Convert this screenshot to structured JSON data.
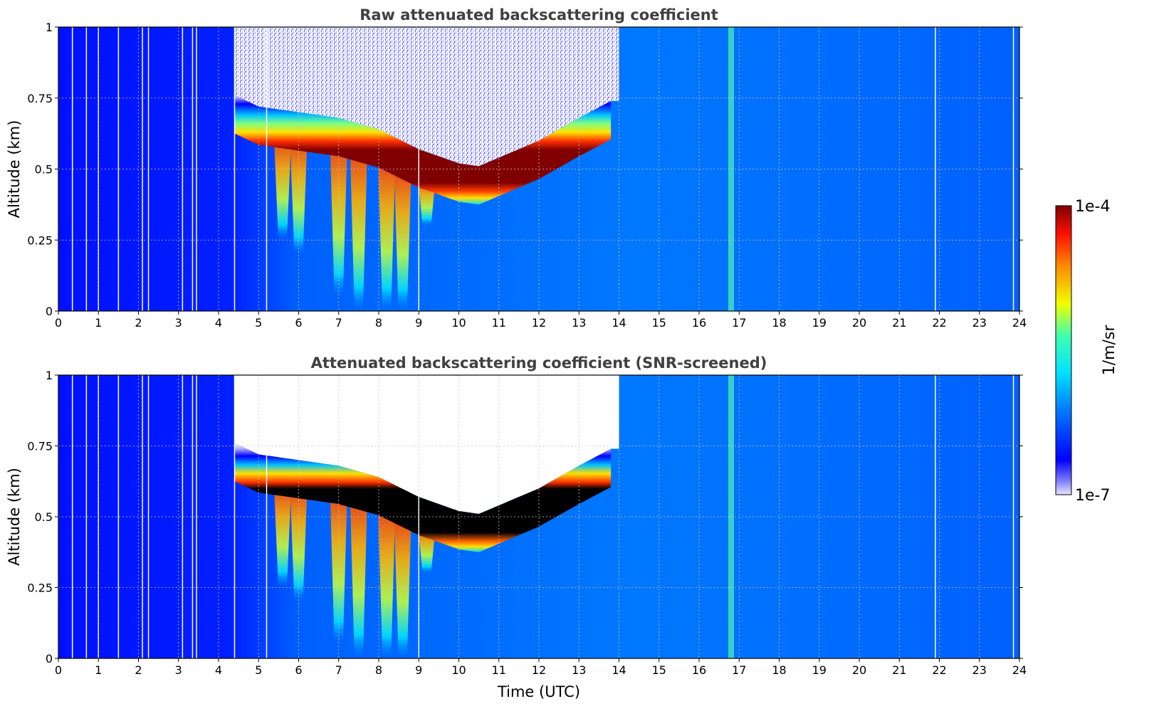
{
  "chart_data": [
    {
      "type": "heatmap",
      "title": "Raw attenuated backscattering coefficient",
      "xlabel": "",
      "ylabel": "Altitude (km)",
      "xlim": [
        0,
        24
      ],
      "ylim": [
        0,
        1
      ],
      "xticks": [
        "0",
        "1",
        "2",
        "3",
        "4",
        "5",
        "6",
        "7",
        "8",
        "9",
        "10",
        "11",
        "12",
        "13",
        "14",
        "15",
        "16",
        "17",
        "18",
        "19",
        "20",
        "21",
        "22",
        "23",
        "24"
      ],
      "yticks": [
        "0",
        "0.25",
        "0.5",
        "0.75",
        "1"
      ],
      "grid": true,
      "screened": false,
      "cloud_base_km": [
        {
          "t": 4.4,
          "z": 0.66
        },
        {
          "t": 5.0,
          "z": 0.62
        },
        {
          "t": 6.0,
          "z": 0.6
        },
        {
          "t": 7.0,
          "z": 0.58
        },
        {
          "t": 8.0,
          "z": 0.54
        },
        {
          "t": 9.0,
          "z": 0.47
        },
        {
          "t": 10.0,
          "z": 0.42
        },
        {
          "t": 10.5,
          "z": 0.41
        },
        {
          "t": 11.0,
          "z": 0.44
        },
        {
          "t": 12.0,
          "z": 0.5
        },
        {
          "t": 13.0,
          "z": 0.58
        },
        {
          "t": 13.8,
          "z": 0.64
        }
      ],
      "cloud_thickness_km": 0.1,
      "precipitation_shafts": [
        {
          "t": 5.6,
          "bottom_km": 0.25
        },
        {
          "t": 6.0,
          "bottom_km": 0.2
        },
        {
          "t": 7.0,
          "bottom_km": 0.05
        },
        {
          "t": 7.5,
          "bottom_km": 0.0
        },
        {
          "t": 8.2,
          "bottom_km": 0.0
        },
        {
          "t": 8.6,
          "bottom_km": 0.0
        },
        {
          "t": 9.2,
          "bottom_km": 0.3
        }
      ],
      "vertical_streak_time": 16.8,
      "data_gap_times": [
        0.35,
        0.7,
        1.0,
        1.5,
        2.1,
        2.25,
        3.1,
        3.35,
        3.45,
        4.4,
        5.2,
        9.0,
        21.9,
        23.85
      ]
    },
    {
      "type": "heatmap",
      "title": "Attenuated backscattering coefficient (SNR-screened)",
      "xlabel": "Time (UTC)",
      "ylabel": "Altitude (km)",
      "xlim": [
        0,
        24
      ],
      "ylim": [
        0,
        1
      ],
      "xticks": [
        "0",
        "1",
        "2",
        "3",
        "4",
        "5",
        "6",
        "7",
        "8",
        "9",
        "10",
        "11",
        "12",
        "13",
        "14",
        "15",
        "16",
        "17",
        "18",
        "19",
        "20",
        "21",
        "22",
        "23",
        "24"
      ],
      "yticks": [
        "0",
        "0.25",
        "0.5",
        "0.75",
        "1"
      ],
      "grid": true,
      "screened": true
    }
  ],
  "colorbar": {
    "label": "1/m/sr",
    "min_label": "1e-7",
    "max_label": "1e-4",
    "scale": "log",
    "range": [
      1e-07,
      0.0001
    ],
    "colormap": "jet"
  }
}
